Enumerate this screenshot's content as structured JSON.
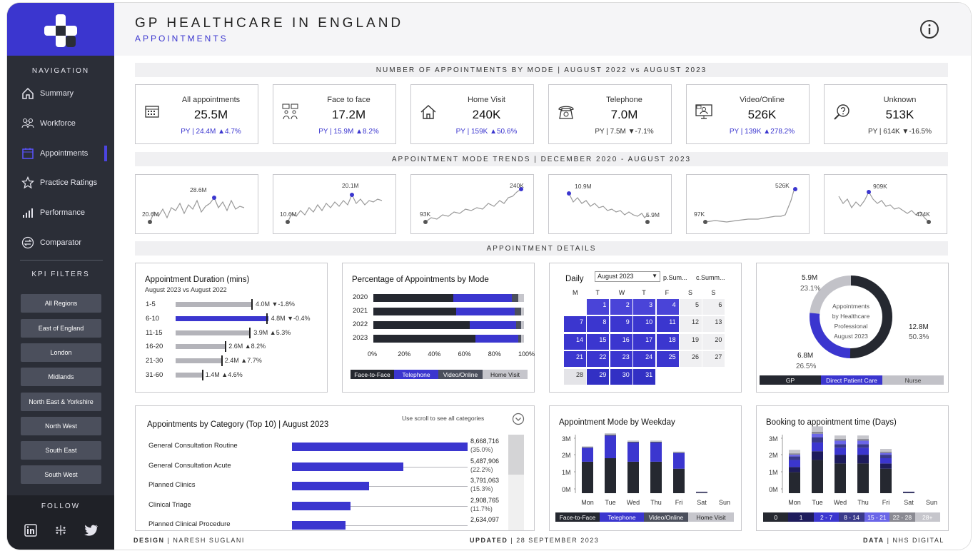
{
  "nav": {
    "heading": "NAVIGATION",
    "items": [
      {
        "label": "Summary",
        "icon": "home-icon"
      },
      {
        "label": "Workforce",
        "icon": "people-icon"
      },
      {
        "label": "Appointments",
        "icon": "calendar-icon"
      },
      {
        "label": "Practice Ratings",
        "icon": "star-icon"
      },
      {
        "label": "Performance",
        "icon": "bar-chart-icon"
      },
      {
        "label": "Comparator",
        "icon": "compare-icon"
      }
    ],
    "filters_heading": "KPI FILTERS",
    "filters": [
      "All Regions",
      "East of England",
      "London",
      "Midlands",
      "North East & Yorkshire",
      "North West",
      "South East",
      "South West"
    ],
    "follow": "FOLLOW"
  },
  "header": {
    "title": "GP HEALTHCARE IN ENGLAND",
    "subtitle": "APPOINTMENTS"
  },
  "bands": {
    "kpi": "NUMBER OF APPOINTMENTS BY MODE | AUGUST 2022 vs AUGUST 2023",
    "trends": "APPOINTMENT MODE TRENDS | DECEMBER 2020 - AUGUST 2023",
    "details": "APPOINTMENT DETAILS"
  },
  "kpis": [
    {
      "label": "All appointments",
      "value": "25.5M",
      "py": "PY | 24.4M ▲4.7%",
      "color": "#3b36cf",
      "icon": "calendar-icon"
    },
    {
      "label": "Face to face",
      "value": "17.2M",
      "py": "PY | 15.9M ▲8.2%",
      "color": "#3b36cf",
      "icon": "face-to-face-icon"
    },
    {
      "label": "Home Visit",
      "value": "240K",
      "py": "PY | 159K ▲50.6%",
      "color": "#3b36cf",
      "icon": "house-icon"
    },
    {
      "label": "Telephone",
      "value": "7.0M",
      "py": "PY | 7.5M  ▼-7.1%",
      "color": "#333333",
      "icon": "telephone-icon"
    },
    {
      "label": "Video/Online",
      "value": "526K",
      "py": "PY | 139K ▲278.2%",
      "color": "#3b36cf",
      "icon": "video-call-icon"
    },
    {
      "label": "Unknown",
      "value": "513K",
      "py": "PY | 614K  ▼-16.5%",
      "color": "#333333",
      "icon": "help-search-icon"
    }
  ],
  "sparks": [
    {
      "min": "20.6M",
      "max": "28.6M"
    },
    {
      "min": "10.6M",
      "max": "20.1M"
    },
    {
      "min": "93K",
      "max": "240K"
    },
    {
      "min": "5.9M",
      "max": "10.9M"
    },
    {
      "min": "97K",
      "max": "526K"
    },
    {
      "min": "424K",
      "max": "909K"
    }
  ],
  "duration": {
    "title": "Appointment Duration (mins)",
    "subtitle": "August 2023 vs August 2022",
    "rows": [
      {
        "label": "1-5",
        "value": 4.0,
        "text": "4.0M ▼-1.8%"
      },
      {
        "label": "6-10",
        "value": 4.8,
        "text": "4.8M ▼-0.4%"
      },
      {
        "label": "11-15",
        "value": 3.9,
        "text": "3.9M ▲5.3%"
      },
      {
        "label": "16-20",
        "value": 2.6,
        "text": "2.6M ▲8.2%"
      },
      {
        "label": "21-30",
        "value": 2.4,
        "text": "2.4M ▲7.7%"
      },
      {
        "label": "31-60",
        "value": 1.4,
        "text": "1.4M ▲4.6%"
      }
    ]
  },
  "mode_pct": {
    "title": "Percentage of Appointments by Mode",
    "years": [
      "2020",
      "2021",
      "2022",
      "2023"
    ],
    "ticks": [
      "0%",
      "20%",
      "40%",
      "60%",
      "80%",
      "100%"
    ],
    "legend": [
      "Face-to-Face",
      "Telephone",
      "Video/Online",
      "Home Visit"
    ]
  },
  "calendar": {
    "daily": "Daily",
    "month": "August 2023",
    "opt1": "p.Sum...",
    "opt2": "c.Summ...",
    "days": [
      "M",
      "T",
      "W",
      "T",
      "F",
      "S",
      "S"
    ]
  },
  "donut": {
    "center": [
      "Appointments",
      "by Healthcare",
      "Professional",
      "August 2023"
    ],
    "gp": {
      "value": "12.8M",
      "pct": "50.3%"
    },
    "dpc": {
      "value": "6.8M",
      "pct": "26.5%"
    },
    "nurse": {
      "value": "5.9M",
      "pct": "23.1%"
    },
    "legend": [
      "GP",
      "Direct Patient Care",
      "Nurse"
    ]
  },
  "category": {
    "title": "Appointments by Category (Top 10)  |  August 2023",
    "scroll_hint": "Use scroll to see all categories",
    "rows": [
      {
        "label": "General Consultation Routine",
        "value": "8,668,716",
        "pct": "(35.0%)"
      },
      {
        "label": "General Consultation Acute",
        "value": "5,487,906",
        "pct": "(22.2%)"
      },
      {
        "label": "Planned Clinics",
        "value": "3,791,063",
        "pct": "(15.3%)"
      },
      {
        "label": "Clinical Triage",
        "value": "2,908,765",
        "pct": "(11.7%)"
      },
      {
        "label": "Planned Clinical Procedure",
        "value": "2,634,097",
        "pct": ""
      }
    ]
  },
  "weekday": {
    "title": "Appointment Mode by Weekday",
    "yticks": [
      "3M",
      "2M",
      "1M",
      "0M"
    ],
    "days": [
      "Mon",
      "Tue",
      "Wed",
      "Thu",
      "Fri",
      "Sat",
      "Sun"
    ],
    "legend": [
      "Face-to-Face",
      "Telephone",
      "Video/Online",
      "Home Visit"
    ]
  },
  "booking": {
    "title": "Booking to appointment time (Days)",
    "yticks": [
      "3M",
      "2M",
      "1M",
      "0M"
    ],
    "days": [
      "Mon",
      "Tue",
      "Wed",
      "Thu",
      "Fri",
      "Sat",
      "Sun"
    ],
    "legend": [
      "0",
      "1",
      "2 - 7",
      "8 - 14",
      "15 - 21",
      "22 - 28",
      "28+"
    ]
  },
  "footer": {
    "design_label": "DESIGN",
    "design": "NARESH SUGLANI",
    "updated_label": "UPDATED",
    "updated": "28 SEPTEMBER 2023",
    "data_label": "DATA",
    "data": "NHS DIGITAL"
  },
  "colors": {
    "accent": "#3b36cf",
    "dark": "#252830",
    "grey": "#b4b4ba"
  }
}
